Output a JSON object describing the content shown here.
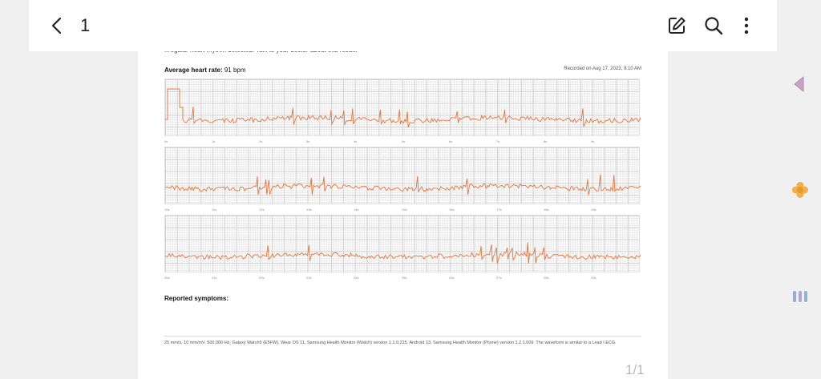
{
  "topbar": {
    "title": "1",
    "back_label": "Back",
    "edit_label": "Edit",
    "search_label": "Search",
    "more_label": "More options"
  },
  "report": {
    "cut_line": "Irregular heart rhythm detected. Talk to your doctor about this result.",
    "avg_label": "Average heart rate:",
    "avg_value": "91 bpm",
    "recorded": "Recorded on Aug 17, 2023, 9:10 AM",
    "symptoms_label": "Reported symptoms:",
    "footer": "25 mm/s, 10 mm/mV, 500.000 Hz, Galaxy Watch5 (E5FW), Wear OS 11, Samsung Health Monitor (Watch) version 1.1.0.225, Android 13, Samsung Health Monitor (Phone) version 1.2.1.009. The waveform is similar to a Lead I ECG.",
    "strips": [
      {
        "ticks": [
          "0s",
          "1s",
          "2s",
          "3s",
          "4s",
          "5s",
          "6s",
          "7s",
          "8s",
          "9s"
        ]
      },
      {
        "ticks": [
          "10s",
          "11s",
          "12s",
          "13s",
          "14s",
          "15s",
          "16s",
          "17s",
          "18s",
          "19s"
        ]
      },
      {
        "ticks": [
          "20s",
          "21s",
          "22s",
          "23s",
          "24s",
          "25s",
          "26s",
          "27s",
          "28s",
          "29s"
        ]
      }
    ]
  },
  "page_indicator": "1/1",
  "colors": {
    "waveform": "#e8743a",
    "side_triangle": "#c8a2c8",
    "side_flower": "#f2b04a",
    "side_bars": "#9aa8d8"
  }
}
